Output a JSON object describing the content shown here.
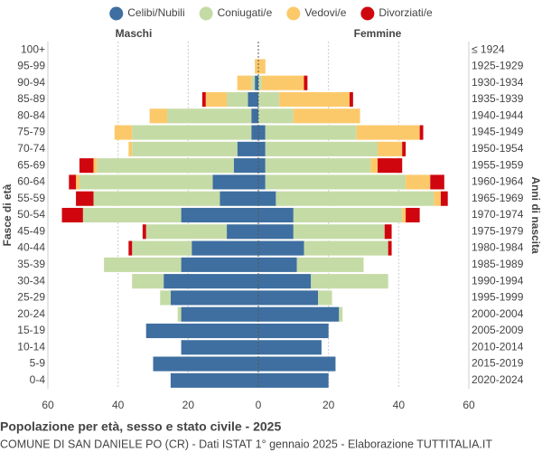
{
  "chart_data": {
    "type": "pyramid",
    "title": "Popolazione per età, sesso e stato civile - 2025",
    "subtitle": "COMUNE DI SAN DANIELE PO (CR) - Dati ISTAT 1° gennaio 2025 - Elaborazione TUTTITALIA.IT",
    "left_label": "Maschi",
    "right_label": "Femmine",
    "y_axis_label": "Fasce di età",
    "y2_axis_label": "Anni di nascita",
    "categories": [
      "100+",
      "95-99",
      "90-94",
      "85-89",
      "80-84",
      "75-79",
      "70-74",
      "65-69",
      "60-64",
      "55-59",
      "50-54",
      "45-49",
      "40-44",
      "35-39",
      "30-34",
      "25-29",
      "20-24",
      "15-19",
      "10-14",
      "5-9",
      "0-4"
    ],
    "birth_years": [
      "≤ 1924",
      "1925-1929",
      "1930-1934",
      "1935-1939",
      "1940-1944",
      "1945-1949",
      "1950-1954",
      "1955-1959",
      "1960-1964",
      "1965-1969",
      "1970-1974",
      "1975-1979",
      "1980-1984",
      "1985-1989",
      "1990-1994",
      "1995-1999",
      "2000-2004",
      "2005-2009",
      "2010-2014",
      "2015-2019",
      "2020-2024"
    ],
    "series": [
      {
        "name": "Celibi/Nubili",
        "color": "#3e6fa0",
        "male": [
          0,
          0,
          1,
          3,
          2,
          2,
          6,
          7,
          13,
          11,
          22,
          9,
          19,
          22,
          27,
          25,
          22,
          32,
          22,
          30,
          25
        ],
        "female": [
          0,
          0,
          0,
          0,
          0,
          2,
          2,
          2,
          2,
          5,
          10,
          10,
          13,
          11,
          15,
          17,
          23,
          20,
          18,
          22,
          20
        ]
      },
      {
        "name": "Coniugati/e",
        "color": "#c5dba6",
        "male": [
          0,
          0,
          1,
          6,
          24,
          34,
          30,
          39,
          38,
          36,
          28,
          23,
          17,
          22,
          9,
          3,
          1,
          0,
          0,
          0,
          0
        ],
        "female": [
          0,
          0,
          1,
          6,
          10,
          26,
          32,
          30,
          40,
          45,
          31,
          26,
          24,
          19,
          22,
          4,
          1,
          0,
          0,
          0,
          0
        ]
      },
      {
        "name": "Vedovi/e",
        "color": "#fcc96a",
        "male": [
          0,
          1,
          4,
          6,
          5,
          5,
          1,
          1,
          1,
          0,
          0,
          0,
          0,
          0,
          0,
          0,
          0,
          0,
          0,
          0,
          0
        ],
        "female": [
          0,
          2,
          12,
          20,
          19,
          18,
          7,
          2,
          7,
          2,
          1,
          0,
          0,
          0,
          0,
          0,
          0,
          0,
          0,
          0,
          0
        ]
      },
      {
        "name": "Divorziati/e",
        "color": "#d0060f",
        "male": [
          0,
          0,
          0,
          1,
          0,
          0,
          0,
          4,
          2,
          5,
          6,
          1,
          1,
          0,
          0,
          0,
          0,
          0,
          0,
          0,
          0
        ],
        "female": [
          0,
          0,
          1,
          1,
          0,
          1,
          1,
          7,
          4,
          2,
          4,
          2,
          1,
          0,
          0,
          0,
          0,
          0,
          0,
          0,
          0
        ]
      }
    ],
    "xlim": [
      -60,
      60
    ],
    "xticks": [
      {
        "value": -60,
        "label": "60"
      },
      {
        "value": -40,
        "label": "40"
      },
      {
        "value": -20,
        "label": "20"
      },
      0,
      20,
      40,
      60
    ],
    "grid": true
  }
}
